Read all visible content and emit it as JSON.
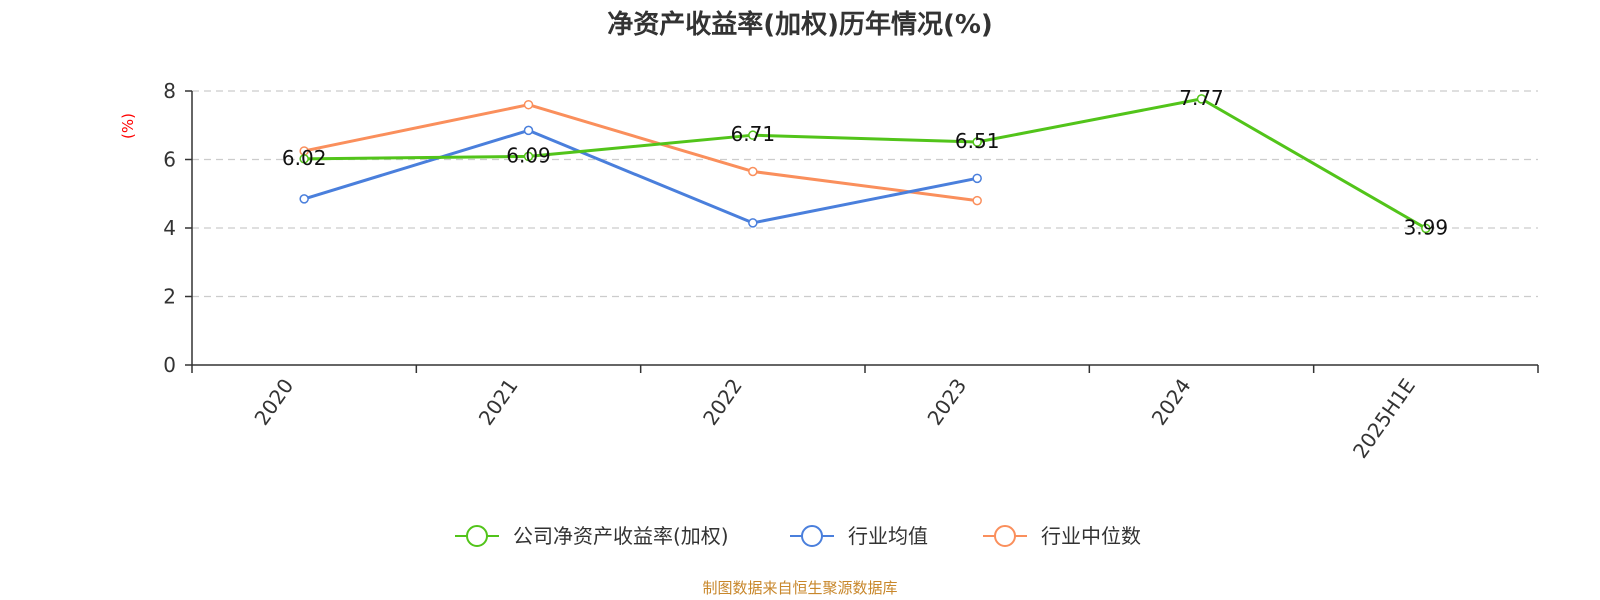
{
  "chart_data": {
    "type": "line",
    "title": "净资产收益率(加权)历年情况(%)",
    "ylabel": "(%)",
    "xlabel": "",
    "categories": [
      "2020",
      "2021",
      "2022",
      "2023",
      "2024",
      "2025H1E"
    ],
    "ylim": [
      0,
      8
    ],
    "yticks": [
      0,
      2,
      4,
      6,
      8
    ],
    "grid": "horizontal-dashed",
    "legend_position": "bottom-center",
    "series": [
      {
        "name": "公司净资产收益率(加权)",
        "color": "#52c41a",
        "values": [
          6.02,
          6.09,
          6.71,
          6.51,
          7.77,
          3.99
        ],
        "show_labels": true
      },
      {
        "name": "行业均值",
        "color": "#4a7fdc",
        "values": [
          4.85,
          6.85,
          4.15,
          5.45,
          null,
          null
        ],
        "show_labels": false
      },
      {
        "name": "行业中位数",
        "color": "#fa8f5c",
        "values": [
          6.25,
          7.6,
          5.65,
          4.8,
          null,
          null
        ],
        "show_labels": false
      }
    ],
    "data_labels": [
      "6.02",
      "6.09",
      "6.71",
      "6.51",
      "7.77",
      "3.99"
    ]
  },
  "colors": {
    "ylabel": "#ff0000",
    "source": "#c8872b",
    "axis": "#333333",
    "grid": "#cccccc"
  },
  "footer": {
    "source": "制图数据来自恒生聚源数据库"
  }
}
